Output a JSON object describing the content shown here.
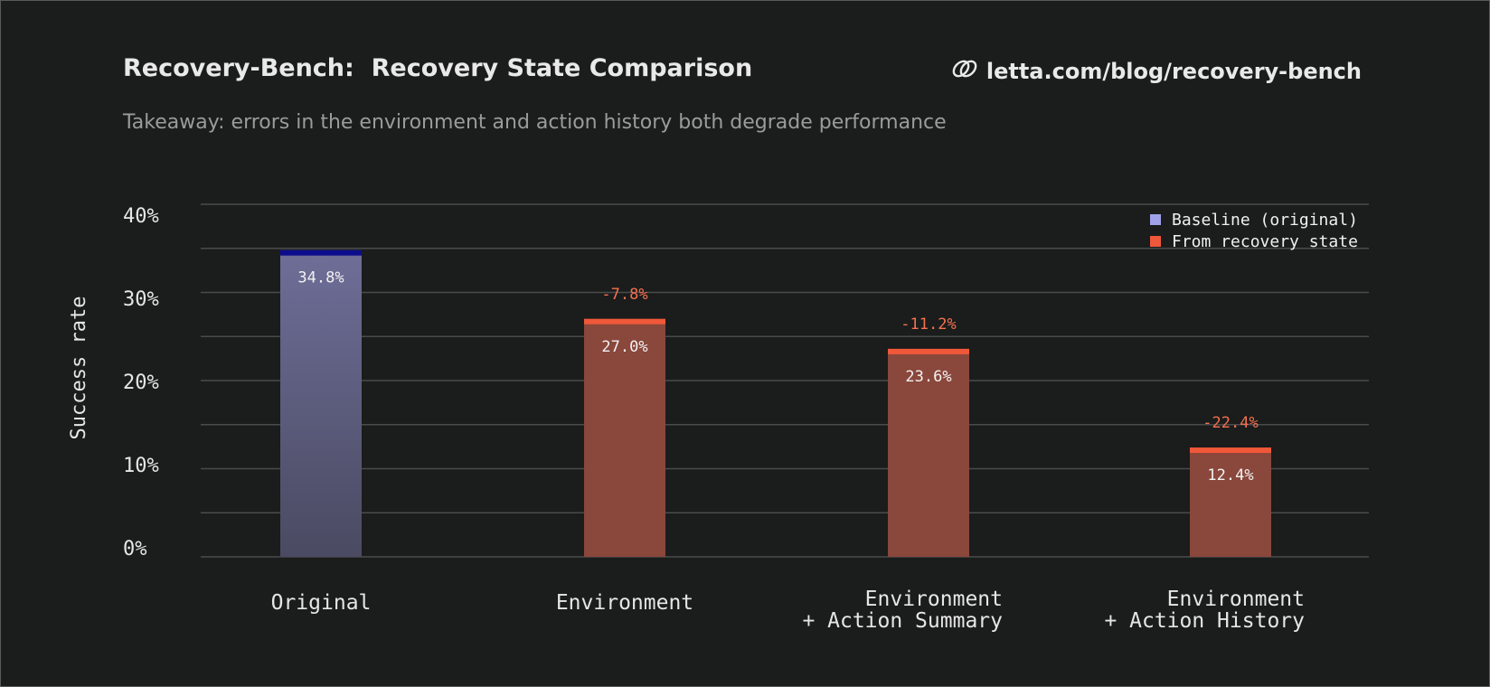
{
  "header": {
    "title": "Recovery-Bench:  Recovery State Comparison",
    "subtitle": "Takeaway: errors in the environment and action history both degrade performance",
    "source_link": "letta.com/blog/recovery-bench",
    "source_icon": "link-icon"
  },
  "chart_data": {
    "type": "bar",
    "title": "Recovery-Bench:  Recovery State Comparison",
    "subtitle": "Takeaway: errors in the environment and action history both degrade performance",
    "ylabel": "Success rate",
    "xlabel": "",
    "ylim": [
      0,
      40
    ],
    "y_ticks": [
      "0%",
      "10%",
      "20%",
      "30%",
      "40%"
    ],
    "grid": true,
    "legend_position": "top-right",
    "categories": [
      [
        "Original"
      ],
      [
        "Environment"
      ],
      [
        "Environment",
        "+ Action Summary"
      ],
      [
        "Environment",
        "+ Action History"
      ]
    ],
    "series": [
      {
        "name": "Baseline (original)",
        "color": "#9fa2e8"
      },
      {
        "name": "From recovery state",
        "color": "#f0583a"
      }
    ],
    "values": [
      34.8,
      27.0,
      23.6,
      12.4
    ],
    "value_labels": [
      "34.8%",
      "27.0%",
      "23.6%",
      "12.4%"
    ],
    "delta_labels": [
      "",
      "-7.8%",
      "-11.2%",
      "-22.4%"
    ],
    "bar_series": [
      "baseline",
      "recovery",
      "recovery",
      "recovery"
    ],
    "colors": {
      "baseline_fill_top": "#6e6e98",
      "baseline_fill_bottom": "#4a4a62",
      "baseline_cap": "#0c0c8c",
      "recovery_fill": "#8a473b",
      "recovery_cap": "#f0583a",
      "delta_text": "#f4714f",
      "grid": "#4a4b4b",
      "axis_text": "#e6e6e6",
      "background": "#1b1c1c"
    }
  }
}
